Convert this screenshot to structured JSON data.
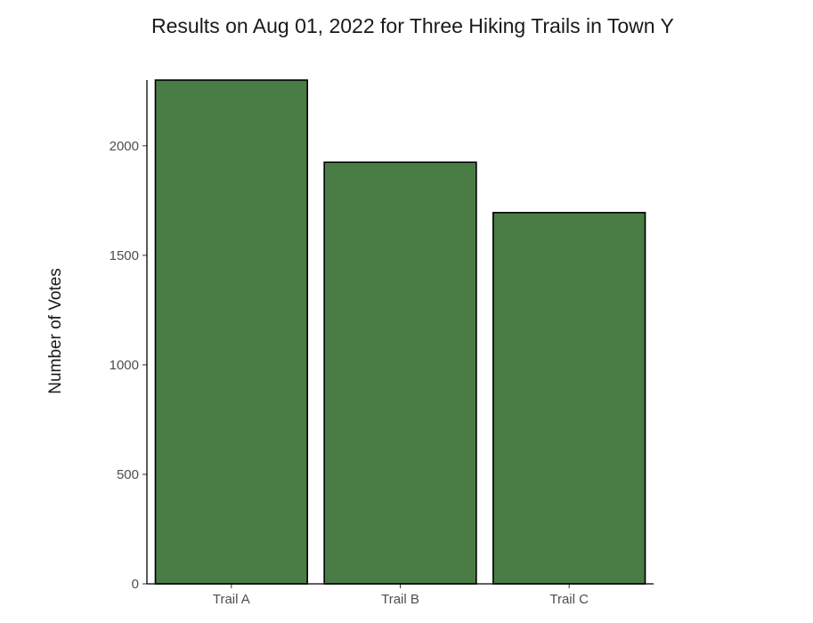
{
  "chart_data": {
    "type": "bar",
    "title": "Results on Aug 01, 2022 for Three Hiking Trails in Town Y",
    "xlabel": "",
    "ylabel": "Number of Votes",
    "categories": [
      "Trail A",
      "Trail B",
      "Trail C"
    ],
    "values": [
      2300,
      1925,
      1695
    ],
    "ylim": [
      0,
      2300
    ],
    "yticks": [
      0,
      500,
      1000,
      1500,
      2000
    ],
    "grid": false,
    "bar_color": "#4a7c45",
    "bar_edge_color": "#000000"
  }
}
